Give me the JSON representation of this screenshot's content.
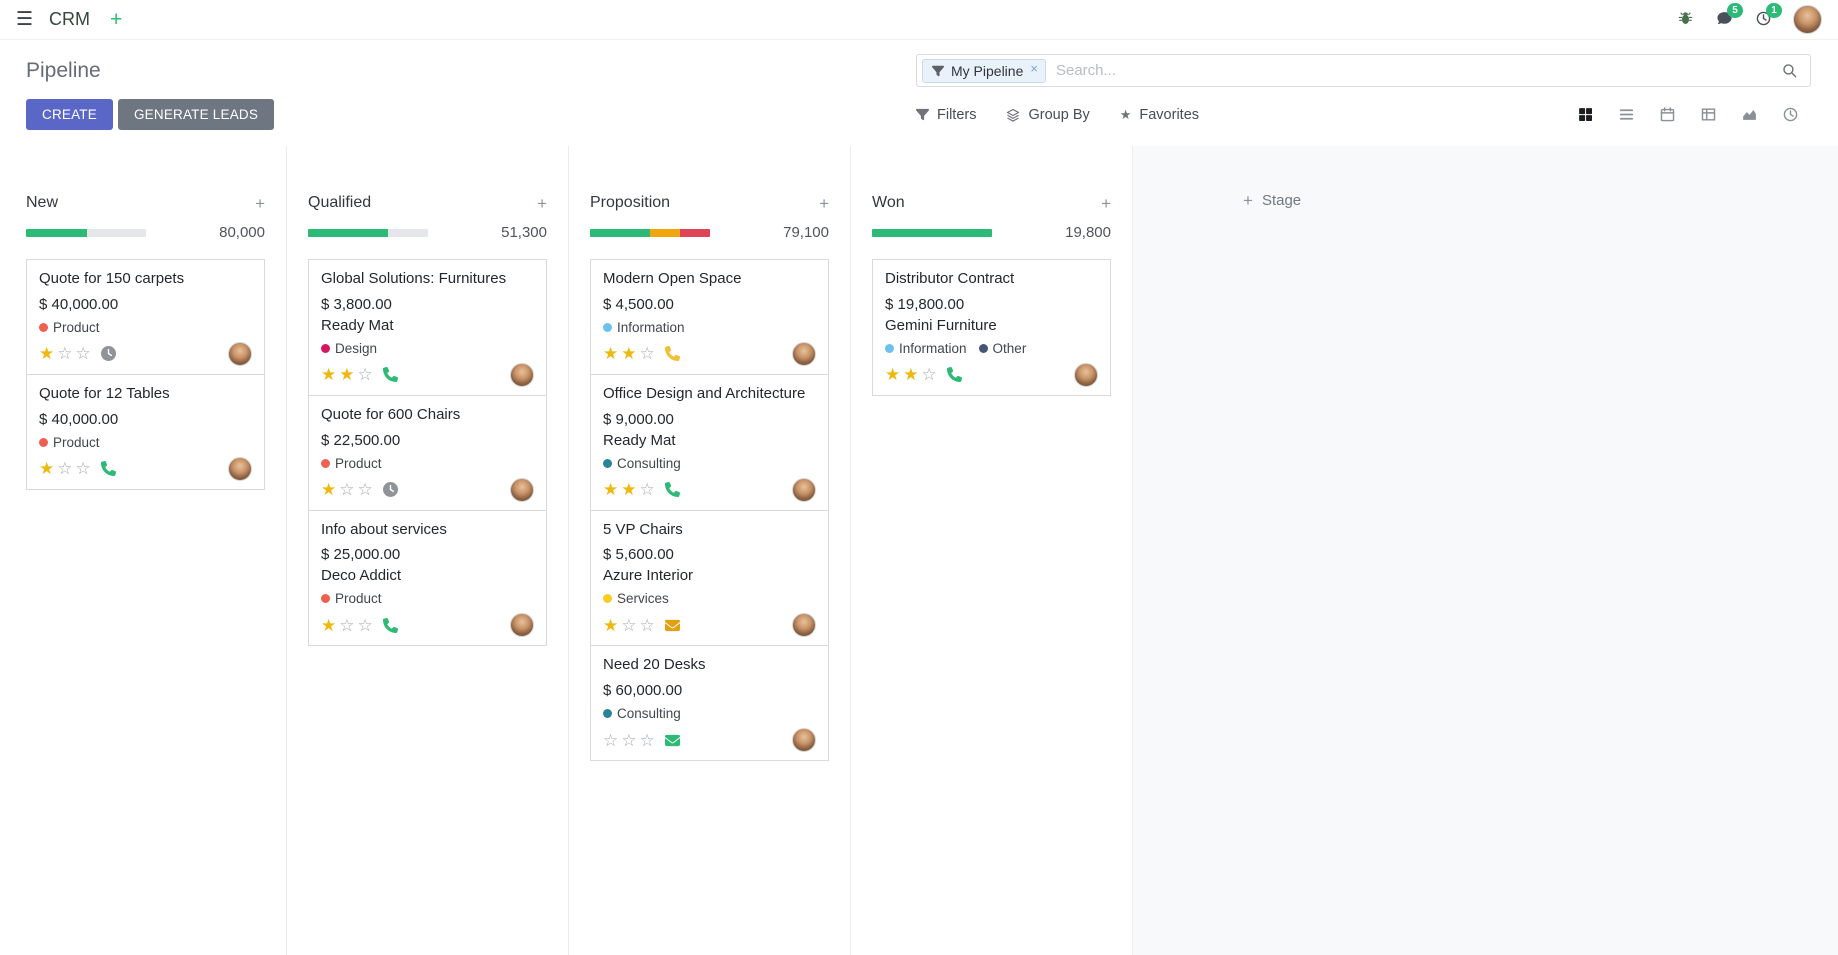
{
  "colors": {
    "primary": "#5B67C7",
    "secondary": "#6E7681",
    "success": "#2CBA76",
    "warning": "#F2A60D",
    "danger": "#DE4456",
    "star": "#EFB810"
  },
  "icons": {
    "hamburger": "☰",
    "plus": "+",
    "close": "×",
    "star_filled": "★",
    "star_empty": "☆"
  },
  "navbar": {
    "app_name": "CRM",
    "messages_badge": "5",
    "activities_badge": "1"
  },
  "control_panel": {
    "title": "Pipeline",
    "search_facet": "My Pipeline",
    "search_placeholder": "Search...",
    "create_label": "CREATE",
    "generate_leads_label": "GENERATE LEADS",
    "filters_label": "Filters",
    "group_by_label": "Group By",
    "favorites_label": "Favorites"
  },
  "board": {
    "add_stage_label": "Stage",
    "columns": [
      {
        "name": "New",
        "amount": "80,000",
        "progress": [
          {
            "color": "#2CBA76",
            "pct": 51
          }
        ],
        "cards": [
          {
            "title": "Quote for 150 carpets",
            "amount": "$ 40,000.00",
            "partner": "",
            "tags": [
              {
                "label": "Product",
                "color": "#F06050"
              }
            ],
            "stars": 1,
            "activity": {
              "icon": "clock",
              "color": "#8F9499"
            }
          },
          {
            "title": "Quote for 12 Tables",
            "amount": "$ 40,000.00",
            "partner": "",
            "tags": [
              {
                "label": "Product",
                "color": "#F06050"
              }
            ],
            "stars": 1,
            "activity": {
              "icon": "phone",
              "color": "#2CBA76"
            }
          }
        ]
      },
      {
        "name": "Qualified",
        "amount": "51,300",
        "progress": [
          {
            "color": "#2CBA76",
            "pct": 67
          }
        ],
        "cards": [
          {
            "title": "Global Solutions: Furnitures",
            "amount": "$ 3,800.00",
            "partner": "Ready Mat",
            "tags": [
              {
                "label": "Design",
                "color": "#D6145F"
              }
            ],
            "stars": 2,
            "activity": {
              "icon": "phone",
              "color": "#2CBA76"
            }
          },
          {
            "title": "Quote for 600 Chairs",
            "amount": "$ 22,500.00",
            "partner": "",
            "tags": [
              {
                "label": "Product",
                "color": "#F06050"
              }
            ],
            "stars": 1,
            "activity": {
              "icon": "clock",
              "color": "#8F9499"
            }
          },
          {
            "title": "Info about services",
            "amount": "$ 25,000.00",
            "partner": "Deco Addict",
            "tags": [
              {
                "label": "Product",
                "color": "#F06050"
              }
            ],
            "stars": 1,
            "activity": {
              "icon": "phone",
              "color": "#2CBA76"
            }
          }
        ]
      },
      {
        "name": "Proposition",
        "amount": "79,100",
        "progress": [
          {
            "color": "#2CBA76",
            "pct": 50
          },
          {
            "color": "#F2A60D",
            "pct": 25
          },
          {
            "color": "#DE4456",
            "pct": 25
          }
        ],
        "cards": [
          {
            "title": "Modern Open Space",
            "amount": "$ 4,500.00",
            "partner": "",
            "tags": [
              {
                "label": "Information",
                "color": "#6CC1ED"
              }
            ],
            "stars": 2,
            "activity": {
              "icon": "phone",
              "color": "#F2C037"
            }
          },
          {
            "title": "Office Design and Architecture",
            "amount": "$ 9,000.00",
            "partner": "Ready Mat",
            "tags": [
              {
                "label": "Consulting",
                "color": "#2C8397"
              }
            ],
            "stars": 2,
            "activity": {
              "icon": "phone",
              "color": "#2CBA76"
            }
          },
          {
            "title": "5 VP Chairs",
            "amount": "$ 5,600.00",
            "partner": "Azure Interior",
            "tags": [
              {
                "label": "Services",
                "color": "#F7CD1F"
              }
            ],
            "stars": 1,
            "activity": {
              "icon": "envelope",
              "color": "#E2A013"
            }
          },
          {
            "title": "Need 20 Desks",
            "amount": "$ 60,000.00",
            "partner": "",
            "tags": [
              {
                "label": "Consulting",
                "color": "#2C8397"
              }
            ],
            "stars": 0,
            "activity": {
              "icon": "envelope",
              "color": "#2CBA76"
            }
          }
        ]
      },
      {
        "name": "Won",
        "amount": "19,800",
        "progress": [
          {
            "color": "#2CBA76",
            "pct": 100
          }
        ],
        "cards": [
          {
            "title": "Distributor Contract",
            "amount": "$ 19,800.00",
            "partner": "Gemini Furniture",
            "tags": [
              {
                "label": "Information",
                "color": "#6CC1ED"
              },
              {
                "label": "Other",
                "color": "#475577"
              }
            ],
            "stars": 2,
            "activity": {
              "icon": "phone",
              "color": "#2CBA76"
            }
          }
        ]
      }
    ]
  }
}
